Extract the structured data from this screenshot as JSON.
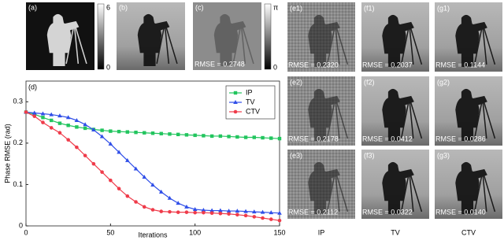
{
  "top_row": [
    {
      "label": "(a)"
    },
    {
      "label": "(b)"
    },
    {
      "label": "(c)",
      "rmse": "RMSE = 0.2748"
    }
  ],
  "colorbars": [
    {
      "max": "6",
      "min": "0"
    },
    {
      "max": "π",
      "min": "0"
    }
  ],
  "grid": {
    "columns": [
      {
        "name": "IP",
        "cells": [
          {
            "label": "(e1)",
            "rmse": "RMSE = 0.2320"
          },
          {
            "label": "(e2)",
            "rmse": "RMSE = 0.2178"
          },
          {
            "label": "(e3)",
            "rmse": "RMSE = 0.2112"
          }
        ]
      },
      {
        "name": "TV",
        "cells": [
          {
            "label": "(f1)",
            "rmse": "RMSE = 0.2037"
          },
          {
            "label": "(f2)",
            "rmse": "RMSE = 0.0412"
          },
          {
            "label": "(f3)",
            "rmse": "RMSE = 0.0322"
          }
        ]
      },
      {
        "name": "CTV",
        "cells": [
          {
            "label": "(g1)",
            "rmse": "RMSE = 0.1144"
          },
          {
            "label": "(g2)",
            "rmse": "RMSE = 0.0286"
          },
          {
            "label": "(g3)",
            "rmse": "RMSE = 0.0140"
          }
        ]
      }
    ]
  },
  "chart_data": {
    "type": "line",
    "panel_label": "(d)",
    "x_label": "Iterations",
    "y_label": "Phase RMSE (rad)",
    "x": [
      0,
      5,
      10,
      15,
      20,
      25,
      30,
      35,
      40,
      45,
      50,
      55,
      60,
      65,
      70,
      75,
      80,
      85,
      90,
      95,
      100,
      105,
      110,
      115,
      120,
      125,
      130,
      135,
      140,
      145,
      150
    ],
    "series": [
      {
        "name": "IP",
        "color": "#22c55e",
        "marker": "square",
        "values": [
          0.275,
          0.27,
          0.262,
          0.255,
          0.248,
          0.243,
          0.239,
          0.236,
          0.233,
          0.231,
          0.229,
          0.228,
          0.227,
          0.226,
          0.225,
          0.224,
          0.223,
          0.222,
          0.221,
          0.22,
          0.219,
          0.218,
          0.217,
          0.217,
          0.216,
          0.215,
          0.214,
          0.214,
          0.213,
          0.212,
          0.211
        ]
      },
      {
        "name": "TV",
        "color": "#2f4ee8",
        "marker": "triangle",
        "values": [
          0.275,
          0.273,
          0.271,
          0.269,
          0.266,
          0.262,
          0.255,
          0.245,
          0.232,
          0.216,
          0.198,
          0.178,
          0.158,
          0.138,
          0.118,
          0.099,
          0.082,
          0.067,
          0.055,
          0.046,
          0.04,
          0.038,
          0.037,
          0.037,
          0.036,
          0.036,
          0.035,
          0.034,
          0.033,
          0.032,
          0.031
        ]
      },
      {
        "name": "CTV",
        "color": "#ef3b4a",
        "marker": "circle",
        "values": [
          0.275,
          0.265,
          0.25,
          0.237,
          0.225,
          0.208,
          0.19,
          0.17,
          0.15,
          0.13,
          0.11,
          0.09,
          0.072,
          0.058,
          0.046,
          0.039,
          0.035,
          0.034,
          0.033,
          0.033,
          0.032,
          0.032,
          0.031,
          0.03,
          0.029,
          0.027,
          0.025,
          0.022,
          0.019,
          0.016,
          0.013
        ]
      }
    ],
    "xlim": [
      0,
      150
    ],
    "ylim": [
      0,
      0.35
    ],
    "xticks": [
      0,
      50,
      100,
      150
    ],
    "yticks": [
      0,
      0.1,
      0.2,
      0.3
    ],
    "legend": "upper right"
  }
}
